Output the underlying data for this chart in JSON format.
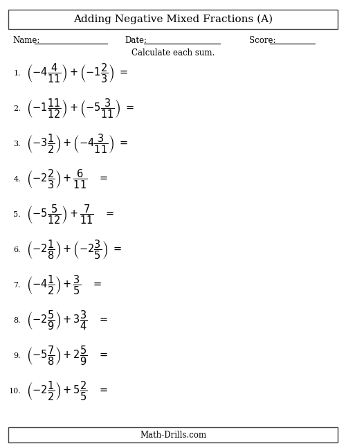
{
  "title": "Adding Negative Mixed Fractions (A)",
  "name_label": "Name:",
  "date_label": "Date:",
  "score_label": "Score:",
  "instruction": "Calculate each sum.",
  "footer": "Math-Drills.com",
  "bg_color": "#ffffff",
  "text_color": "#000000",
  "border_color": "#444444",
  "title_fontsize": 11,
  "label_fontsize": 8.5,
  "num_fontsize": 8,
  "math_fontsize": 10.5,
  "footer_fontsize": 8.5,
  "problem_nums": [
    "1.",
    "2.",
    "3.",
    "4.",
    "5.",
    "6.",
    "7.",
    "8.",
    "9.",
    "10."
  ],
  "math_exprs": [
    "\\left(-4\\dfrac{4}{11}\\right)+\\left(-1\\dfrac{2}{3}\\right)\\ =",
    "\\left(-1\\dfrac{11}{12}\\right)+\\left(-5\\dfrac{3}{11}\\right)\\ =",
    "\\left(-3\\dfrac{1}{2}\\right)+\\left(-4\\dfrac{3}{11}\\right)\\ =",
    "\\left(-2\\dfrac{2}{3}\\right)+\\dfrac{6}{11}\\quad =",
    "\\left(-5\\dfrac{5}{12}\\right)+\\dfrac{7}{11}\\quad =",
    "\\left(-2\\dfrac{1}{8}\\right)+\\left(-2\\dfrac{3}{5}\\right)\\ =",
    "\\left(-4\\dfrac{1}{2}\\right)+\\dfrac{3}{5}\\quad =",
    "\\left(-2\\dfrac{5}{9}\\right)+3\\dfrac{3}{4}\\quad =",
    "\\left(-5\\dfrac{7}{8}\\right)+2\\dfrac{5}{9}\\quad =",
    "\\left(-2\\dfrac{1}{2}\\right)+5\\dfrac{2}{5}\\quad ="
  ]
}
